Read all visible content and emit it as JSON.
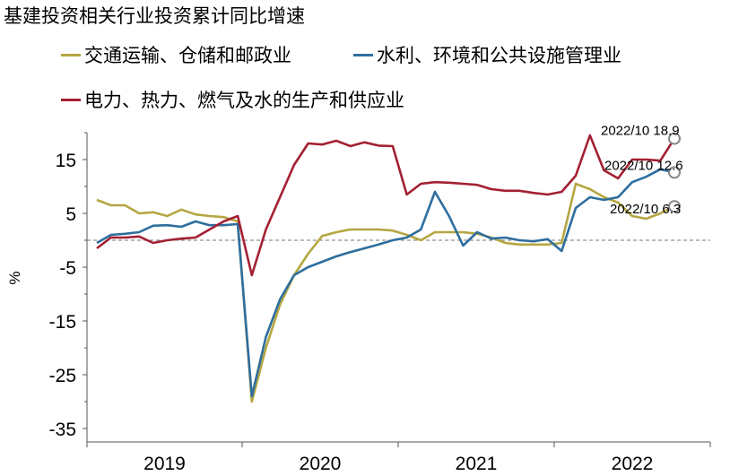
{
  "chart_data": {
    "type": "line",
    "title": "基建投资相关行业投资累计同比增速",
    "ylabel": "%",
    "ylim": [
      -35,
      20
    ],
    "yticks": [
      15,
      5,
      -5,
      -15,
      -25,
      -35
    ],
    "year_labels": [
      "2019",
      "2020",
      "2021",
      "2022"
    ],
    "zero_line": "dashed",
    "series": [
      {
        "name": "交通运输、仓储和邮政业",
        "color": "#b5a642",
        "values": [
          7.5,
          6.5,
          6.5,
          5,
          5.2,
          4.5,
          5.7,
          4.8,
          4.5,
          4.3,
          3.5,
          -30,
          -20,
          -12,
          -6.5,
          -2.5,
          0.8,
          1.5,
          2,
          2,
          2,
          1.8,
          1,
          0,
          1.5,
          1.5,
          1.5,
          1.2,
          0.5,
          -0.5,
          -0.8,
          -0.8,
          -0.8,
          -0.5,
          10.5,
          9.5,
          8,
          7,
          4.5,
          4,
          5,
          6.3
        ],
        "end_label": "2022/10 6.3"
      },
      {
        "name": "水利、环境和公共设施管理业",
        "color": "#2e6e9e",
        "values": [
          -0.5,
          1,
          1.2,
          1.5,
          2.7,
          2.8,
          2.5,
          3.5,
          2.8,
          2.8,
          3,
          -29,
          -18,
          -11,
          -6.5,
          -5,
          -4,
          -3,
          -2.2,
          -1.5,
          -0.8,
          0,
          0.5,
          2,
          9,
          4.5,
          -1,
          1.5,
          0.3,
          0.5,
          0,
          -0.2,
          0.2,
          -2,
          6,
          8,
          7.5,
          8,
          10.8,
          11.8,
          13.2,
          12.6
        ],
        "end_label": "2022/10 12.6"
      },
      {
        "name": "电力、热力、燃气及水的生产和供应业",
        "color": "#a32033",
        "values": [
          -1.5,
          0.5,
          0.5,
          0.7,
          -0.5,
          0,
          0.3,
          0.5,
          2,
          3.5,
          4.5,
          -6.5,
          2,
          8,
          14,
          18,
          17.8,
          18.5,
          17.5,
          18.2,
          17.6,
          17.5,
          8.5,
          10.5,
          10.8,
          10.7,
          10.5,
          10.3,
          9.5,
          9.2,
          9.2,
          8.8,
          8.5,
          9,
          12,
          19.5,
          13,
          11.5,
          15,
          15,
          14.8,
          18.9
        ],
        "end_label": "2022/10 18.9"
      }
    ]
  }
}
